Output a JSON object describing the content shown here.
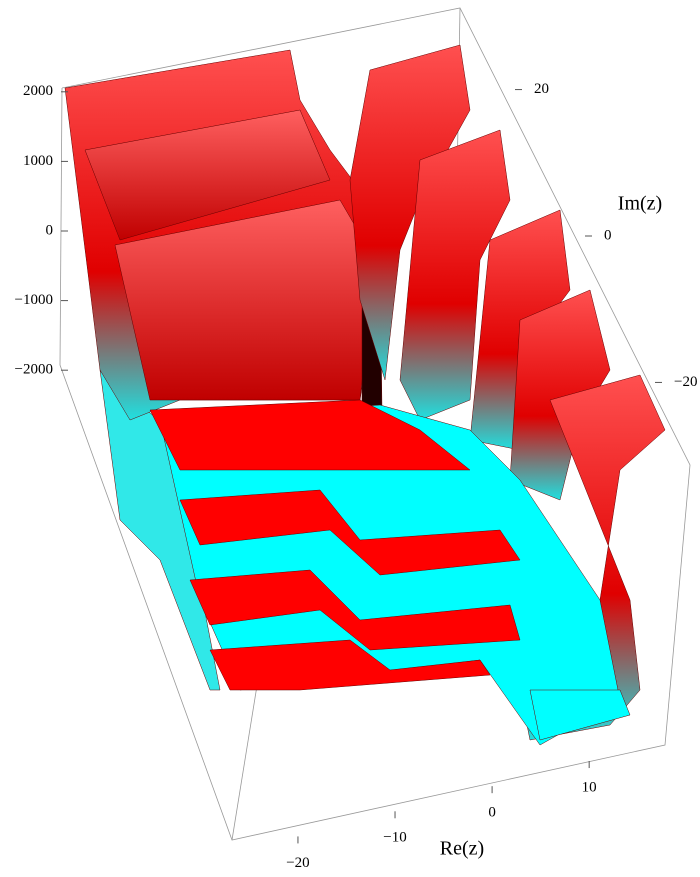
{
  "chart_data": {
    "type": "surface3d",
    "xlabel": "Re(z)",
    "ylabel": "Im(z)",
    "xlim": [
      -27,
      14
    ],
    "xticks": [
      {
        "value": -20,
        "label": "−20"
      },
      {
        "value": -10,
        "label": "−10"
      },
      0,
      10
    ],
    "ylim": [
      -28,
      28
    ],
    "yticks": [
      20,
      0,
      {
        "value": -20,
        "label": "−20"
      }
    ],
    "zlim": [
      -2500,
      2500
    ],
    "zticks": [
      2000,
      1000,
      0,
      {
        "value": -1000,
        "label": "−1000"
      },
      {
        "value": -2000,
        "label": "−2000"
      }
    ],
    "colors": [
      "#ff0000",
      "#00ffff"
    ]
  }
}
